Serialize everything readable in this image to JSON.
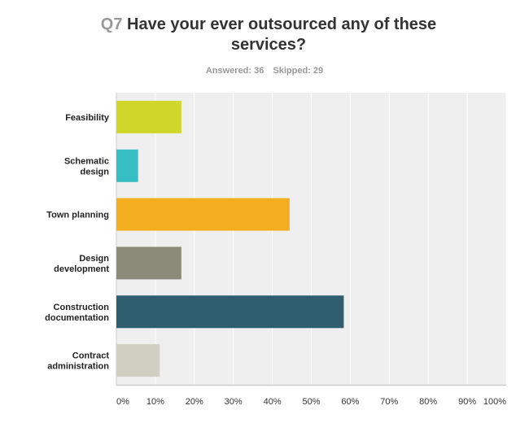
{
  "chart_data": {
    "type": "bar",
    "orientation": "horizontal",
    "question_number": "Q7",
    "title": "Have your ever outsourced any of these services?",
    "answered_label": "Answered: 36",
    "skipped_label": "Skipped: 29",
    "categories": [
      [
        "Feasibility"
      ],
      [
        "Schematic",
        "design"
      ],
      [
        "Town planning"
      ],
      [
        "Design",
        "development"
      ],
      [
        "Construction",
        "documentation"
      ],
      [
        "Contract",
        "administration"
      ]
    ],
    "values": [
      16.67,
      5.56,
      44.44,
      16.67,
      58.33,
      11.11
    ],
    "colors": [
      "#d1d62a",
      "#36bec2",
      "#f5ae20",
      "#8b8b79",
      "#2f5f6e",
      "#d0cfc2"
    ],
    "xlim": [
      0,
      100
    ],
    "xticks": [
      "0%",
      "10%",
      "20%",
      "30%",
      "40%",
      "50%",
      "60%",
      "70%",
      "80%",
      "90%",
      "100%"
    ],
    "grid": true,
    "xlabel": "",
    "ylabel": ""
  }
}
